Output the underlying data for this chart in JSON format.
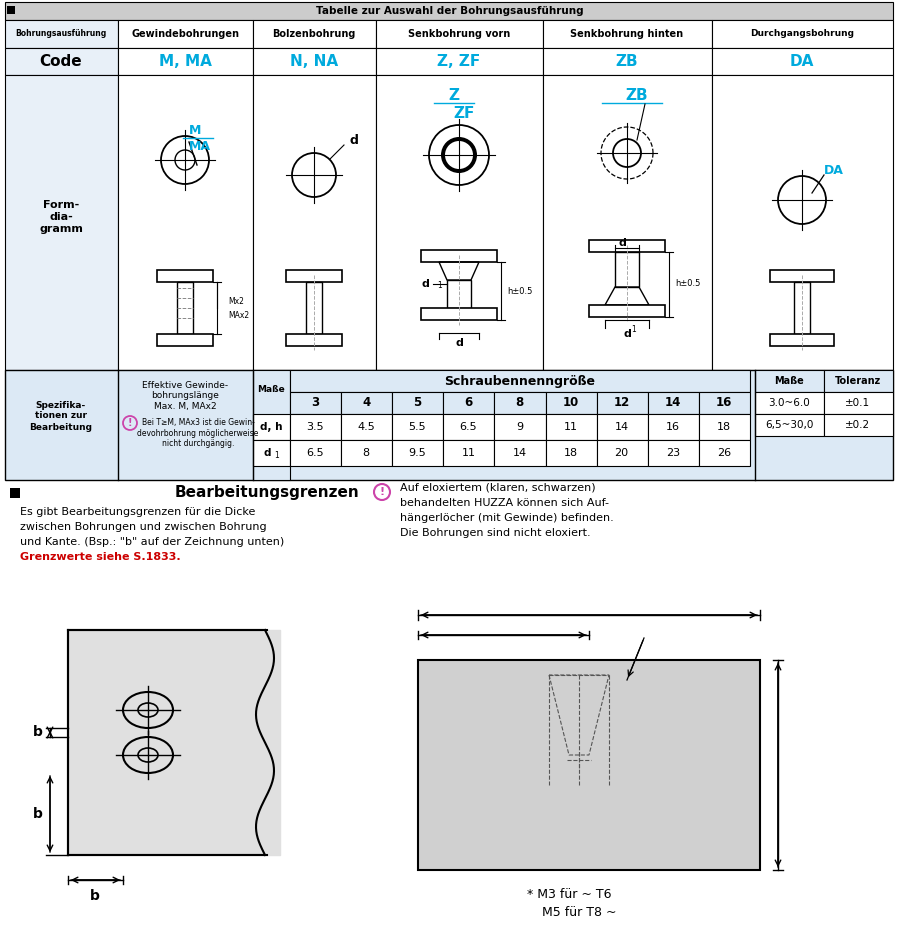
{
  "title": "Tabelle zur Auswahl der Bohrungsausführung",
  "bg_color": "#ffffff",
  "cyan": "#00aadd",
  "red": "#cc0000",
  "light_blue": "#dce9f5",
  "col_headers": [
    "Bohrungsausführung",
    "Gewindebohrungen",
    "Bolzenbohrung",
    "Senkbohrung vorn",
    "Senkbohrung hinten",
    "Durchgangsbohrung"
  ],
  "code_row": [
    "Code",
    "M, MA",
    "N, NA",
    "Z, ZF",
    "ZB",
    "DA"
  ],
  "screw_sizes": [
    "3",
    "4",
    "5",
    "6",
    "8",
    "10",
    "12",
    "14",
    "16"
  ],
  "dh_row": [
    "d, h",
    "3.5",
    "4.5",
    "5.5",
    "6.5",
    "9",
    "11",
    "14",
    "16",
    "18"
  ],
  "d1_row": [
    "d1",
    "6.5",
    "8",
    "9.5",
    "11",
    "14",
    "18",
    "20",
    "23",
    "26"
  ],
  "tol_row1": [
    "3.0~6.0",
    "±0.1"
  ],
  "tol_row2": [
    "6,5~30,0",
    "±0.2"
  ],
  "section2_title": "Bearbeitungsgrenzen",
  "section2_lines": [
    "Es gibt Bearbeitungsgrenzen für die Dicke",
    "zwischen Bohrungen und zwischen Bohrung",
    "und Kante. (Bsp.: \"b\" auf der Zeichnung unten)"
  ],
  "section2_red": "Grenzwerte siehe S.1833.",
  "section3_lines": [
    "Auf eloxiertem (klaren, schwarzen)",
    "behandelten HUZZA können sich Auf-",
    "hängerlöcher (mit Gewinde) befinden.",
    "Die Bohrungen sind nicht eloxiert."
  ],
  "footnote1": "* M3 für ~ T6",
  "footnote2": "M5 für T8 ~"
}
